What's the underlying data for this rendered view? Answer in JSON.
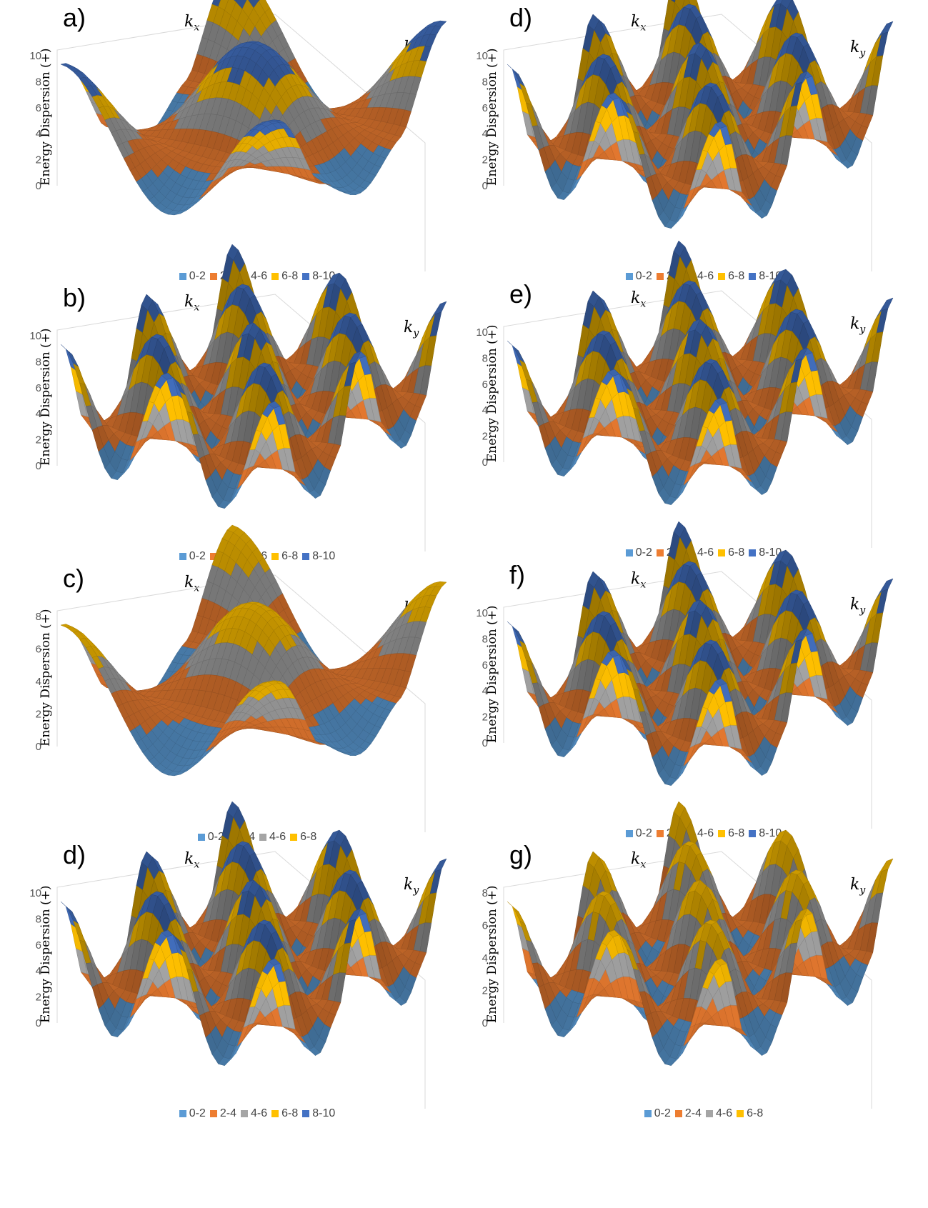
{
  "chart_data": [
    {
      "panel": "a)",
      "type": "surface",
      "xlabel": "k_x",
      "ylabel": "Energy Dispersion (+)",
      "zlabel_axis": "k_y",
      "yticks": [
        "0",
        "2",
        "4",
        "6",
        "8",
        "10"
      ],
      "ylim": [
        0,
        10
      ],
      "legend": [
        "0-2",
        "2-4",
        "4-6",
        "6-8",
        "8-10"
      ],
      "peak_grid": 2,
      "peak_max": 10
    },
    {
      "panel": "b)",
      "type": "surface",
      "xlabel": "k_x",
      "ylabel": "Energy Dispersion (+)",
      "zlabel_axis": "k_y",
      "yticks": [
        "0",
        "2",
        "4",
        "6",
        "8",
        "10"
      ],
      "ylim": [
        0,
        10
      ],
      "legend": [
        "0-2",
        "2-4",
        "4-6",
        "6-8",
        "8-10"
      ],
      "peak_grid": 4,
      "peak_max": 10
    },
    {
      "panel": "c)",
      "type": "surface",
      "xlabel": "k_x",
      "ylabel": "Energy Dispersion (+)",
      "zlabel_axis": "k_y",
      "yticks": [
        "0",
        "2",
        "4",
        "6",
        "8"
      ],
      "ylim": [
        0,
        8
      ],
      "legend": [
        "0-2",
        "2-4",
        "4-6",
        "6-8"
      ],
      "peak_grid": 2,
      "peak_max": 8
    },
    {
      "panel": "d)",
      "type": "surface",
      "xlabel": "k_x",
      "ylabel": "Energy Dispersion (+)",
      "zlabel_axis": "k_y",
      "yticks": [
        "0",
        "2",
        "4",
        "6",
        "8",
        "10"
      ],
      "ylim": [
        0,
        10
      ],
      "legend": [
        "0-2",
        "2-4",
        "4-6",
        "6-8",
        "8-10"
      ],
      "peak_grid": 4,
      "peak_max": 10
    },
    {
      "panel": "d)",
      "type": "surface",
      "xlabel": "k_x",
      "ylabel": "Energy Dispersion (+)",
      "zlabel_axis": "k_y",
      "yticks": [
        "0",
        "2",
        "4",
        "6",
        "8",
        "10"
      ],
      "ylim": [
        0,
        10
      ],
      "legend": [
        "0-2",
        "2-4",
        "4-6",
        "6-8",
        "8-10"
      ],
      "peak_grid": 4,
      "peak_max": 10
    },
    {
      "panel": "e)",
      "type": "surface",
      "xlabel": "k_x",
      "ylabel": "Energy Dispersion (+)",
      "zlabel_axis": "k_y",
      "yticks": [
        "0",
        "2",
        "4",
        "6",
        "8",
        "10"
      ],
      "ylim": [
        0,
        10
      ],
      "legend": [
        "0-2",
        "2-4",
        "4-6",
        "6-8",
        "8-10"
      ],
      "peak_grid": 4,
      "peak_max": 10
    },
    {
      "panel": "f)",
      "type": "surface",
      "xlabel": "k_x",
      "ylabel": "Energy Dispersion (+)",
      "zlabel_axis": "k_y",
      "yticks": [
        "0",
        "2",
        "4",
        "6",
        "8",
        "10"
      ],
      "ylim": [
        0,
        10
      ],
      "legend": [
        "0-2",
        "2-4",
        "4-6",
        "6-8",
        "8-10"
      ],
      "peak_grid": 4,
      "peak_max": 10
    },
    {
      "panel": "g)",
      "type": "surface",
      "xlabel": "k_x",
      "ylabel": "Energy Dispersion (+)",
      "zlabel_axis": "k_y",
      "yticks": [
        "0",
        "2",
        "4",
        "6",
        "8"
      ],
      "ylim": [
        0,
        8
      ],
      "legend": [
        "0-2",
        "2-4",
        "4-6",
        "6-8"
      ],
      "peak_grid": 4,
      "peak_max": 8
    }
  ],
  "colors": {
    "0-2": "#5b9bd5",
    "2-4": "#ed7d31",
    "4-6": "#a5a5a5",
    "6-8": "#ffc000",
    "8-10": "#4472c4"
  }
}
